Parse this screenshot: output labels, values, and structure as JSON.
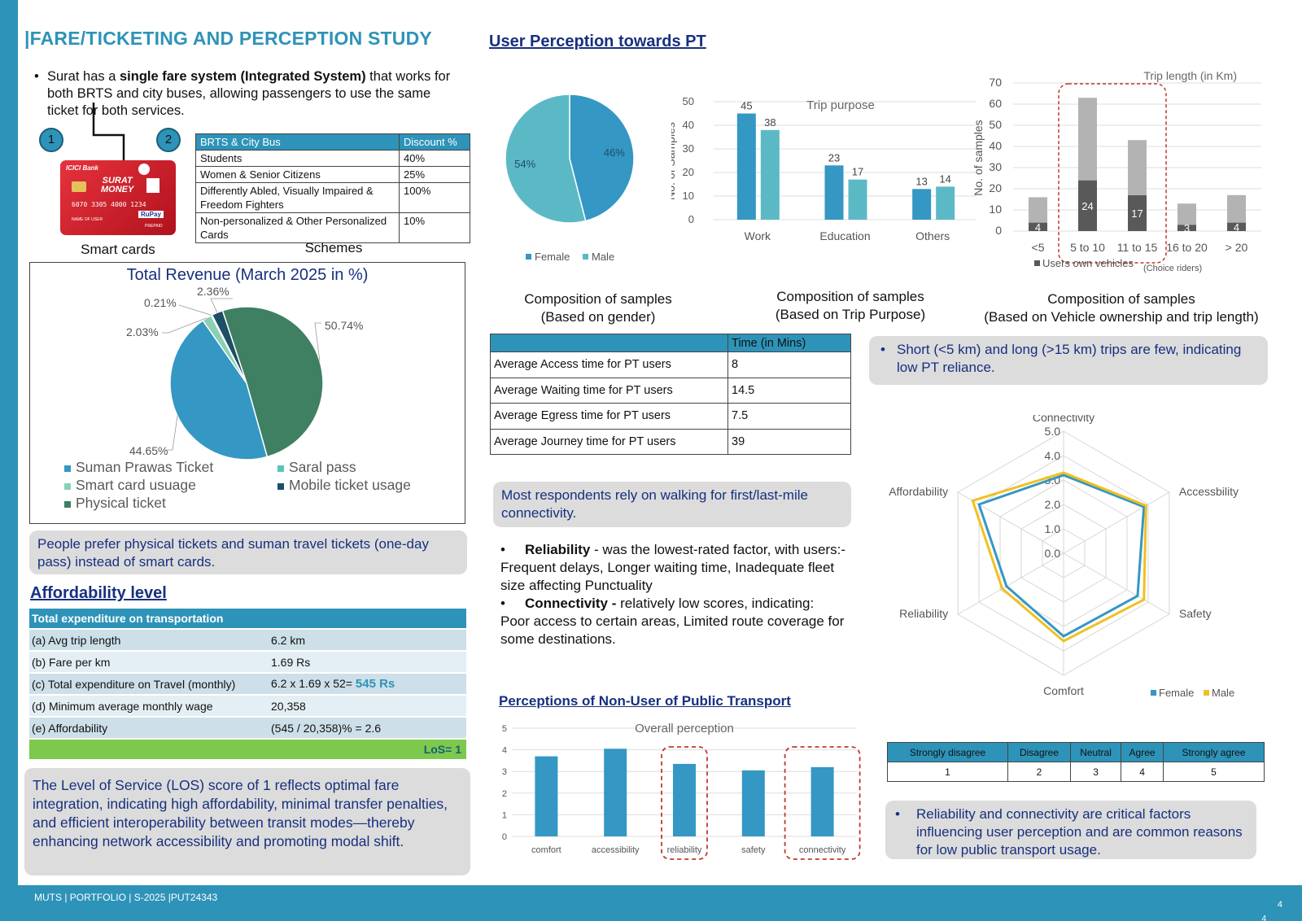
{
  "title": "|FARE/TICKETING AND PERCEPTION STUDY",
  "intro": {
    "pre": "Surat has a ",
    "bold": "single fare system (Integrated System)",
    "post": " that works for both BRTS and city buses, allowing passengers to use the same ticket for both services."
  },
  "markers": [
    "1",
    "2"
  ],
  "card": {
    "bank": "ICICI Bank",
    "name_line1": "SURAT",
    "name_line2": "MONEY",
    "number": "6070 3305 4000 1234",
    "holder": "NAME OF USER",
    "network": "RuPay",
    "type": "PREPAID"
  },
  "captions": {
    "smart_cards": "Smart cards",
    "schemes": "Schemes"
  },
  "schemes": {
    "headers": [
      "BRTS & City Bus",
      "Discount %"
    ],
    "rows": [
      [
        "Students",
        "40%"
      ],
      [
        "Women & Senior Citizens",
        "25%"
      ],
      [
        "Differently Abled, Visually Impaired & Freedom Fighters",
        "100%"
      ],
      [
        "Non-personalized & Other Personalized Cards",
        "10%"
      ]
    ]
  },
  "revenue": {
    "title": "Total Revenue (March 2025 in %)",
    "legend": [
      "Suman Prawas Ticket",
      "Saral pass",
      "Smart card usuage",
      "Mobile ticket usage",
      "Physical ticket"
    ]
  },
  "note_tickets": "People prefer physical tickets and suman travel tickets (one-day pass) instead of smart cards.",
  "afford": {
    "heading": "Affordability level",
    "table_title": "Total expenditure on transportation",
    "rows": [
      [
        "(a) Avg trip length",
        "6.2 km"
      ],
      [
        "(b) Fare per km",
        "1.69 Rs"
      ],
      [
        "(c) Total expenditure on Travel (monthly)",
        "6.2 x 1.69 x 52= ",
        "545 Rs"
      ],
      [
        "(d) Minimum average monthly wage",
        "20,358"
      ],
      [
        "(e) Affordability",
        "(545 / 20,358)% = 2.6"
      ]
    ],
    "los": "LoS= 1"
  },
  "note_los": "The Level of Service (LOS) score of 1 reflects optimal fare integration, indicating high affordability, minimal transfer penalties, and efficient interoperability between transit modes—thereby enhancing network accessibility and promoting modal shift.",
  "perception_heading": "User Perception towards PT",
  "captions2": {
    "gender": [
      "Composition of samples",
      "(Based on gender)"
    ],
    "purpose": [
      "Composition of samples",
      "(Based on Trip Purpose)"
    ],
    "vehicle": [
      "Composition of samples",
      "(Based on Vehicle ownership and trip length)"
    ]
  },
  "time_table": {
    "header": "Time (in Mins)",
    "rows": [
      [
        "Average Access time for PT users",
        "8"
      ],
      [
        "Average Waiting time for PT users",
        "14.5"
      ],
      [
        "Average Egress time for PT users",
        "7.5"
      ],
      [
        "Average Journey time for PT users",
        "39"
      ]
    ]
  },
  "note_trips": "Short (<5 km) and long (>15 km) trips are few, indicating low PT reliance.",
  "note_walk": "Most respondents rely on walking for first/last-mile connectivity.",
  "reliab": {
    "b1_bold": "Reliability",
    "b1_rest": " - was the lowest-rated factor, with users:-",
    "b1_detail": "Frequent delays, Longer waiting time, Inadequate fleet size affecting Punctuality",
    "b2_bold": "Connectivity -",
    "b2_rest": " relatively low scores, indicating:",
    "b2_detail": "Poor access to certain areas, Limited route coverage for some destinations."
  },
  "nonuser_heading": "Perceptions of Non-User of Public Transport",
  "likert": {
    "headers": [
      "Strongly disagree",
      "Disagree",
      "Neutral",
      "Agree",
      "Strongly agree"
    ],
    "values": [
      "1",
      "2",
      "3",
      "4",
      "5"
    ]
  },
  "note_critical": "Reliability and connectivity are critical factors influencing user perception and are common reasons for low public transport usage.",
  "footer": {
    "text": "MUTS  | PORTFOLIO | S-2025 |PUT24343",
    "page": "4",
    "page2": "4"
  },
  "chart_data": [
    {
      "id": "revenue",
      "type": "pie",
      "title": "Total Revenue (March 2025 in %)",
      "labels": [
        "Physical ticket",
        "Suman Prawas Ticket",
        "Smart card usuage",
        "Saral pass",
        "Mobile ticket usage"
      ],
      "values": [
        50.74,
        44.65,
        2.03,
        0.21,
        2.36
      ],
      "value_labels": [
        "50.74%",
        "44.65%",
        "2.03%",
        "0.21%",
        "2.36%"
      ],
      "colors": [
        "#3f7f62",
        "#3497c4",
        "#8ad0b5",
        "#5cc4b8",
        "#1d4f66"
      ]
    },
    {
      "id": "gender",
      "type": "pie",
      "labels": [
        "Female",
        "Male"
      ],
      "values": [
        46,
        54
      ],
      "value_labels": [
        "46%",
        "54%"
      ],
      "colors": [
        "#3497c4",
        "#5bb9c6"
      ],
      "legend": "bottom"
    },
    {
      "id": "purpose",
      "type": "bar",
      "title": "Trip purpose",
      "ylabel": "No. of Samples",
      "categories": [
        "Work",
        "Education",
        "Others"
      ],
      "series": [
        {
          "name": "Female",
          "values": [
            45,
            23,
            13
          ],
          "color": "#3497c4"
        },
        {
          "name": "Male",
          "values": [
            38,
            17,
            14
          ],
          "color": "#5bb9c6"
        }
      ],
      "ylim": [
        0,
        50
      ],
      "yticks": [
        0,
        10,
        20,
        30,
        40,
        50
      ]
    },
    {
      "id": "triplength",
      "type": "bar",
      "stacked": true,
      "title": "Trip length (in Km)",
      "ylabel": "No. of samples",
      "categories": [
        "<5",
        "5 to 10",
        "11 to 15",
        "16 to 20",
        "> 20"
      ],
      "series": [
        {
          "name": "Users own vehicles",
          "values": [
            4,
            24,
            17,
            3,
            4
          ],
          "color": "#595959"
        },
        {
          "name": "",
          "values": [
            12,
            39,
            26,
            10,
            13
          ],
          "color": "#b3b3b3"
        }
      ],
      "legend_note": "(Choice riders)",
      "ylim": [
        0,
        70
      ],
      "yticks": [
        0,
        10,
        20,
        30,
        40,
        50,
        60,
        70
      ]
    },
    {
      "id": "radar",
      "type": "radar",
      "axes": [
        "Connectivity",
        "Accessbility",
        "Safety",
        "Comfort",
        "Reliability",
        "Affordability"
      ],
      "ticks": [
        "0.0",
        "1.0",
        "2.0",
        "3.0",
        "4.0",
        "5.0"
      ],
      "rmax": 5,
      "series": [
        {
          "name": "Female",
          "values": [
            3.2,
            3.8,
            3.5,
            3.4,
            2.7,
            4.0
          ],
          "color": "#3497c4"
        },
        {
          "name": "Male",
          "values": [
            3.3,
            3.9,
            3.8,
            3.6,
            2.9,
            4.3
          ],
          "color": "#f0c020"
        }
      ]
    },
    {
      "id": "nonuser",
      "type": "bar",
      "title": "Overall perception",
      "categories": [
        "comfort",
        "accessibility",
        "reliability",
        "safety",
        "connectivity"
      ],
      "values": [
        3.7,
        4.05,
        3.35,
        3.05,
        3.2
      ],
      "ylim": [
        0,
        5
      ],
      "yticks": [
        0,
        1,
        2,
        3,
        4,
        5
      ],
      "color": "#3497c4"
    }
  ]
}
